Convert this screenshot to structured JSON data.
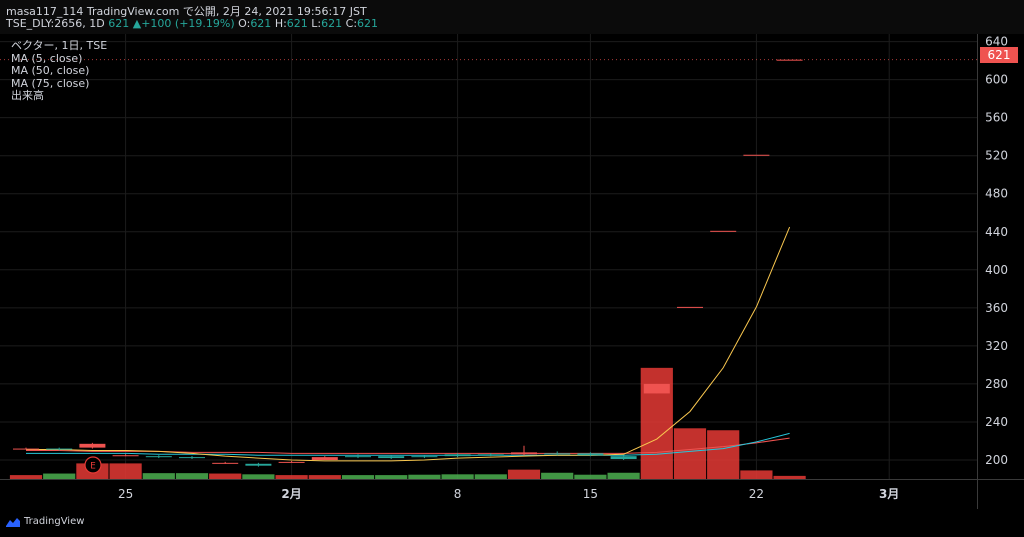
{
  "header": {
    "line1": "masa117_114 TradingView.com で公開, 2月 24, 2021 19:56:17 JST",
    "symbol": "TSE_DLY:2656, 1D",
    "last": "621",
    "arrow": "▲",
    "change": "+100 (+19.19%)",
    "o_label": "O:",
    "o_value": "621",
    "h_label": "H:",
    "h_value": "621",
    "l_label": "L:",
    "l_value": "621",
    "c_label": "C:",
    "c_value": "621"
  },
  "legend": {
    "title": "ベクター, 1日, TSE",
    "ma5": "MA (5, close)",
    "ma50": "MA (50, close)",
    "ma75": "MA (75, close)",
    "volume": "出来高"
  },
  "price_tag": "621",
  "earnings_marker": "E",
  "footer": {
    "brand": "TradingView"
  },
  "colors": {
    "up": "#26a69a",
    "down": "#ef5350",
    "ma5": "#f9c74f",
    "ma50": "#26c6da",
    "ma75": "#ef5350",
    "grid": "#1c1c1c",
    "axis_text": "#d1d4dc"
  },
  "chart_data": {
    "type": "candlestick",
    "y_ticks": [
      200,
      240,
      280,
      320,
      360,
      400,
      440,
      480,
      520,
      560,
      600,
      640
    ],
    "ylim": [
      180,
      648
    ],
    "x_ticks": [
      {
        "label": "25",
        "index": 3,
        "bold": false
      },
      {
        "label": "2月",
        "index": 8,
        "bold": true
      },
      {
        "label": "8",
        "index": 13,
        "bold": false
      },
      {
        "label": "15",
        "index": 17,
        "bold": false
      },
      {
        "label": "22",
        "index": 22,
        "bold": false
      },
      {
        "label": "3月",
        "index": 26,
        "bold": true
      }
    ],
    "candles": [
      {
        "o": 212,
        "h": 213,
        "l": 211,
        "c": 212,
        "vol": 10,
        "color": "down"
      },
      {
        "o": 211,
        "h": 213,
        "l": 210,
        "c": 212,
        "vol": 14,
        "color": "up"
      },
      {
        "o": 217,
        "h": 218,
        "l": 212,
        "c": 213,
        "vol": 40,
        "color": "down"
      },
      {
        "o": 205,
        "h": 206,
        "l": 204,
        "c": 204,
        "vol": 40,
        "color": "down"
      },
      {
        "o": 203,
        "h": 205,
        "l": 202,
        "c": 204,
        "vol": 15,
        "color": "up"
      },
      {
        "o": 202,
        "h": 204,
        "l": 201,
        "c": 203,
        "vol": 15,
        "color": "up"
      },
      {
        "o": 197,
        "h": 198,
        "l": 196,
        "c": 197,
        "vol": 14,
        "color": "down"
      },
      {
        "o": 194,
        "h": 197,
        "l": 193,
        "c": 196,
        "vol": 12,
        "color": "up"
      },
      {
        "o": 198,
        "h": 199,
        "l": 197,
        "c": 198,
        "vol": 10,
        "color": "down"
      },
      {
        "o": 203,
        "h": 204,
        "l": 200,
        "c": 200,
        "vol": 10,
        "color": "down"
      },
      {
        "o": 203,
        "h": 206,
        "l": 202,
        "c": 204,
        "vol": 10,
        "color": "up"
      },
      {
        "o": 202,
        "h": 205,
        "l": 201,
        "c": 204,
        "vol": 10,
        "color": "up"
      },
      {
        "o": 203,
        "h": 205,
        "l": 202,
        "c": 204,
        "vol": 11,
        "color": "up"
      },
      {
        "o": 204,
        "h": 207,
        "l": 203,
        "c": 206,
        "vol": 12,
        "color": "up"
      },
      {
        "o": 205,
        "h": 207,
        "l": 204,
        "c": 206,
        "vol": 12,
        "color": "up"
      },
      {
        "o": 208,
        "h": 215,
        "l": 205,
        "c": 206,
        "vol": 24,
        "color": "down"
      },
      {
        "o": 206,
        "h": 209,
        "l": 205,
        "c": 207,
        "vol": 16,
        "color": "up"
      },
      {
        "o": 205,
        "h": 208,
        "l": 204,
        "c": 207,
        "vol": 11,
        "color": "up"
      },
      {
        "o": 201,
        "h": 205,
        "l": 200,
        "c": 204,
        "vol": 16,
        "color": "up"
      },
      {
        "o": 280,
        "h": 280,
        "l": 270,
        "c": 270,
        "vol": 285,
        "color": "down"
      },
      {
        "o": 361,
        "h": 361,
        "l": 361,
        "c": 361,
        "vol": 130,
        "color": "down"
      },
      {
        "o": 441,
        "h": 441,
        "l": 441,
        "c": 441,
        "vol": 125,
        "color": "down"
      },
      {
        "o": 521,
        "h": 521,
        "l": 521,
        "c": 521,
        "vol": 22,
        "color": "down"
      },
      {
        "o": 621,
        "h": 621,
        "l": 621,
        "c": 621,
        "vol": 8,
        "color": "down"
      }
    ],
    "ma5": [
      211,
      211,
      210,
      210,
      209,
      207,
      204,
      202,
      200,
      199,
      199,
      199,
      200,
      202,
      203,
      204,
      205,
      205,
      206,
      222,
      251,
      297,
      361,
      445
    ],
    "ma50": [
      207,
      207,
      207,
      207,
      206,
      206,
      206,
      205,
      205,
      205,
      205,
      205,
      205,
      205,
      205,
      205,
      205,
      205,
      205,
      206,
      209,
      212,
      219,
      228
    ],
    "ma75": [
      210,
      210,
      209,
      209,
      209,
      208,
      208,
      208,
      207,
      207,
      207,
      207,
      207,
      207,
      207,
      207,
      207,
      207,
      207,
      208,
      211,
      214,
      218,
      223
    ]
  }
}
